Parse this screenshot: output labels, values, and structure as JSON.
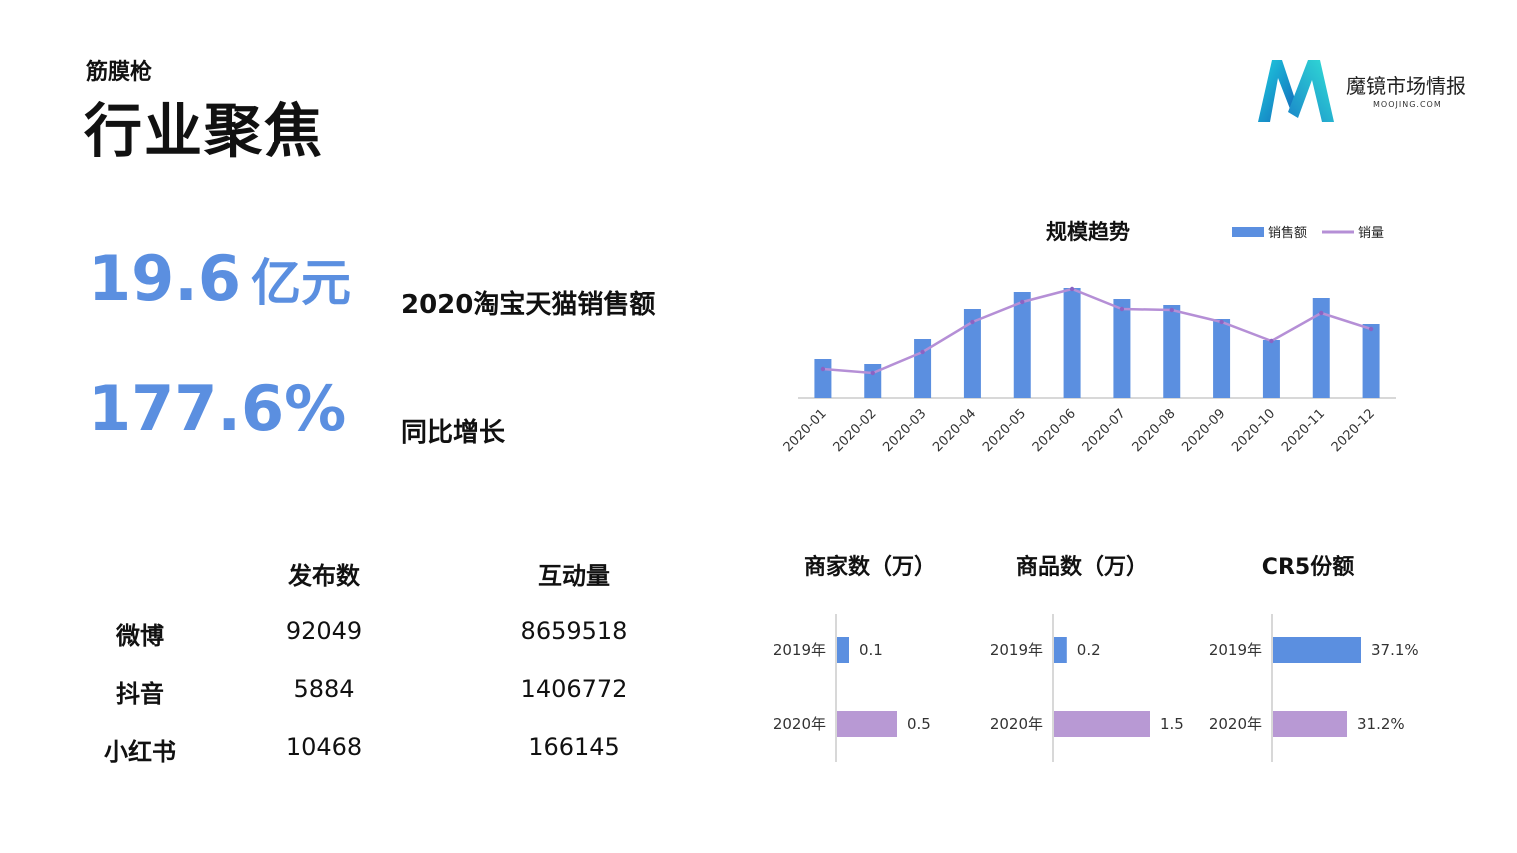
{
  "header": {
    "subtitle": "筋膜枪",
    "title": "行业聚焦"
  },
  "logo": {
    "name": "魔镜市场情报",
    "domain": "MOOJING.COM"
  },
  "kpis": [
    {
      "value": "19.6",
      "unit": "亿元",
      "label": "2020淘宝天猫销售额"
    },
    {
      "value": "177.6%",
      "unit": "",
      "label": "同比增长"
    }
  ],
  "social_table": {
    "headers": [
      "发布数",
      "互动量"
    ],
    "rows": [
      {
        "platform": "微博",
        "posts": "92049",
        "interactions": "8659518"
      },
      {
        "platform": "抖音",
        "posts": "5884",
        "interactions": "1406772"
      },
      {
        "platform": "小红书",
        "posts": "10468",
        "interactions": "166145"
      }
    ]
  },
  "colors": {
    "blue": "#5b8fe0",
    "purple": "#b899d4",
    "line": "#b58fd6",
    "axis": "#cccccc"
  },
  "chart_data": [
    {
      "type": "bar",
      "title": "规模趋势",
      "categories": [
        "2020-01",
        "2020-02",
        "2020-03",
        "2020-04",
        "2020-05",
        "2020-06",
        "2020-07",
        "2020-08",
        "2020-09",
        "2020-10",
        "2020-11",
        "2020-12"
      ],
      "series": [
        {
          "name": "销售额",
          "type": "bar",
          "values": [
            39,
            34,
            59,
            89,
            106,
            110,
            99,
            93,
            79,
            58,
            100,
            74
          ]
        },
        {
          "name": "销量",
          "type": "line",
          "values": [
            29,
            25,
            46,
            76,
            96,
            109,
            89,
            88,
            76,
            57,
            85,
            69
          ]
        }
      ],
      "ylim": [
        0,
        120
      ],
      "legend": "top-right",
      "grid": false
    },
    {
      "type": "bar",
      "orientation": "horizontal",
      "title": "商家数（万）",
      "categories": [
        "2019年",
        "2020年"
      ],
      "values": [
        0.1,
        0.5
      ],
      "labels": [
        "0.1",
        "0.5"
      ],
      "xlim": [
        0,
        0.8
      ]
    },
    {
      "type": "bar",
      "orientation": "horizontal",
      "title": "商品数（万）",
      "categories": [
        "2019年",
        "2020年"
      ],
      "values": [
        0.2,
        1.5
      ],
      "labels": [
        "0.2",
        "1.5"
      ],
      "xlim": [
        0,
        1.5
      ]
    },
    {
      "type": "bar",
      "orientation": "horizontal",
      "title": "CR5份额",
      "categories": [
        "2019年",
        "2020年"
      ],
      "values": [
        37.1,
        31.2
      ],
      "labels": [
        "37.1%",
        "31.2%"
      ],
      "xlim": [
        0,
        37.1
      ]
    }
  ]
}
